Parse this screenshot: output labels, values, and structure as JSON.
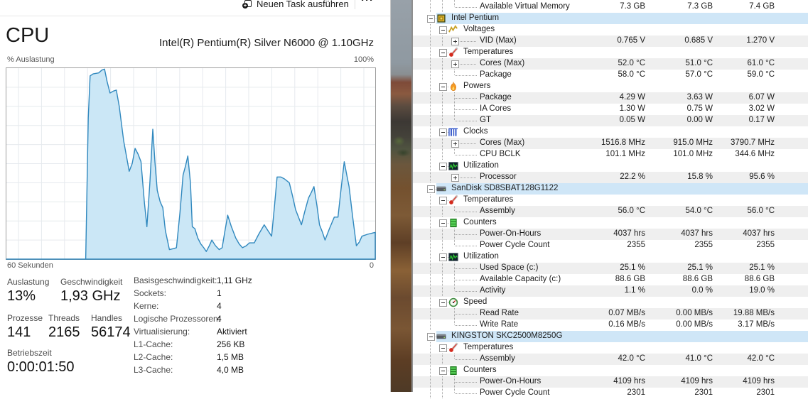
{
  "colors": {
    "graph_fill": "#cbe7f6",
    "graph_stroke": "#3088be",
    "grid": "#e6eaee",
    "header_row": "#cfe6f7",
    "shaded_row": "#efefef",
    "wall_border": "#8f8f8f"
  },
  "taskmanager": {
    "toolbar": {
      "run_new_task": "Neuen Task ausführen",
      "more": "···"
    },
    "title": "CPU",
    "subtitle": "Intel(R) Pentium(R) Silver N6000 @ 1.10GHz",
    "graph_labels": {
      "top_left": "% Auslastung",
      "top_right": "100%",
      "bottom_left": "60 Sekunden",
      "bottom_right": "0"
    },
    "stats": [
      {
        "label": "Auslastung",
        "value": "13%"
      },
      {
        "label": "Geschwindigkeit",
        "value": "1,93 GHz"
      },
      {
        "label": "Prozesse",
        "value": "141"
      },
      {
        "label": "Threads",
        "value": "2165"
      },
      {
        "label": "Handles",
        "value": "56174"
      },
      {
        "label": "Betriebszeit",
        "value": "0:00:01:50"
      }
    ],
    "details": [
      {
        "label": "Basisgeschwindigkeit:",
        "value": "1,11 GHz"
      },
      {
        "label": "Sockets:",
        "value": "1"
      },
      {
        "label": "Kerne:",
        "value": "4"
      },
      {
        "label": "Logische Prozessoren:",
        "value": "4"
      },
      {
        "label": "Virtualisierung:",
        "value": "Aktiviert"
      },
      {
        "label": "L1-Cache:",
        "value": "256 KB"
      },
      {
        "label": "L2-Cache:",
        "value": "1,5 MB"
      },
      {
        "label": "L3-Cache:",
        "value": "4,0 MB"
      }
    ]
  },
  "chart_data": {
    "type": "area",
    "title": "CPU % Auslastung",
    "xlabel": "60 Sekunden (links) bis 0 (rechts)",
    "ylabel": "% Auslastung",
    "ylim": [
      0,
      100
    ],
    "xlim_seconds": [
      60,
      0
    ],
    "grid": true,
    "points": [
      [
        0,
        0
      ],
      [
        0.215,
        0
      ],
      [
        0.222,
        74
      ],
      [
        0.227,
        96
      ],
      [
        0.235,
        97
      ],
      [
        0.25,
        97.5
      ],
      [
        0.259,
        99
      ],
      [
        0.266,
        99.5
      ],
      [
        0.273,
        93
      ],
      [
        0.281,
        87
      ],
      [
        0.29,
        88
      ],
      [
        0.298,
        88.5
      ],
      [
        0.306,
        80
      ],
      [
        0.318,
        62
      ],
      [
        0.333,
        46
      ],
      [
        0.341,
        50
      ],
      [
        0.349,
        58
      ],
      [
        0.357,
        55
      ],
      [
        0.365,
        51
      ],
      [
        0.374,
        30
      ],
      [
        0.381,
        17
      ],
      [
        0.389,
        40
      ],
      [
        0.397,
        68
      ],
      [
        0.403,
        50
      ],
      [
        0.409,
        36
      ],
      [
        0.417,
        30
      ],
      [
        0.424,
        27
      ],
      [
        0.431,
        15
      ],
      [
        0.442,
        5
      ],
      [
        0.453,
        5.5
      ],
      [
        0.461,
        6
      ],
      [
        0.471,
        25
      ],
      [
        0.479,
        44
      ],
      [
        0.486,
        49
      ],
      [
        0.492,
        54
      ],
      [
        0.499,
        40
      ],
      [
        0.504,
        17
      ],
      [
        0.511,
        16
      ],
      [
        0.519,
        11
      ],
      [
        0.527,
        8
      ],
      [
        0.535,
        6
      ],
      [
        0.542,
        4
      ],
      [
        0.55,
        7
      ],
      [
        0.557,
        10
      ],
      [
        0.567,
        7
      ],
      [
        0.577,
        5
      ],
      [
        0.585,
        6
      ],
      [
        0.592,
        14
      ],
      [
        0.6,
        23
      ],
      [
        0.61,
        17
      ],
      [
        0.622,
        11
      ],
      [
        0.631,
        8
      ],
      [
        0.64,
        6
      ],
      [
        0.65,
        7
      ],
      [
        0.659,
        8.5
      ],
      [
        0.672,
        8.5
      ],
      [
        0.684,
        13
      ],
      [
        0.699,
        18
      ],
      [
        0.709,
        15
      ],
      [
        0.719,
        12
      ],
      [
        0.727,
        28
      ],
      [
        0.734,
        43
      ],
      [
        0.744,
        43
      ],
      [
        0.754,
        42
      ],
      [
        0.767,
        40
      ],
      [
        0.776,
        33
      ],
      [
        0.784,
        26
      ],
      [
        0.792,
        22
      ],
      [
        0.8,
        18
      ],
      [
        0.809,
        25
      ],
      [
        0.819,
        32
      ],
      [
        0.827,
        35
      ],
      [
        0.834,
        38
      ],
      [
        0.842,
        28
      ],
      [
        0.849,
        18
      ],
      [
        0.857,
        14
      ],
      [
        0.864,
        10
      ],
      [
        0.876,
        16
      ],
      [
        0.889,
        22
      ],
      [
        0.899,
        22
      ],
      [
        0.907,
        36
      ],
      [
        0.916,
        51
      ],
      [
        0.923,
        44
      ],
      [
        0.929,
        38
      ],
      [
        0.939,
        22
      ],
      [
        0.949,
        7
      ],
      [
        0.957,
        9
      ],
      [
        0.964,
        12
      ],
      [
        0.979,
        13
      ],
      [
        1,
        14
      ]
    ]
  },
  "sensors": {
    "rows": [
      {
        "l": "Available Virtual Memory",
        "v": [
          "7.3 GB",
          "7.3 GB",
          "7.4 GB"
        ],
        "t": "leaf",
        "bg": "w",
        "g": [
          24,
          41
        ],
        "e": "h"
      },
      {
        "l": "Intel Pentium",
        "t": "dev",
        "icon": "cpu",
        "box": "-",
        "bg": "hdr"
      },
      {
        "l": "Voltages",
        "t": "cat",
        "icon": "volt",
        "box": "-",
        "bg": "w",
        "g": [
          24
        ]
      },
      {
        "l": "VID (Max)",
        "v": [
          "0.765 V",
          "0.685 V",
          "1.270 V"
        ],
        "t": "itemx",
        "box": "+",
        "bg": "s",
        "g": [
          24,
          41
        ]
      },
      {
        "l": "Temperatures",
        "t": "cat",
        "icon": "temp",
        "box": "-",
        "bg": "w",
        "g": [
          24
        ]
      },
      {
        "l": "Cores (Max)",
        "v": [
          "52.0 °C",
          "51.0 °C",
          "61.0 °C"
        ],
        "t": "itemx",
        "box": "+",
        "bg": "s",
        "g": [
          24,
          41
        ]
      },
      {
        "l": "Package",
        "v": [
          "58.0 °C",
          "57.0 °C",
          "59.0 °C"
        ],
        "t": "leaf",
        "bg": "w",
        "g": [
          24,
          41
        ],
        "e": "h"
      },
      {
        "l": "Powers",
        "t": "cat",
        "icon": "power",
        "box": "-",
        "bg": "w",
        "g": [
          24
        ]
      },
      {
        "l": "Package",
        "v": [
          "4.29 W",
          "3.63 W",
          "6.07 W"
        ],
        "t": "leaf",
        "bg": "s",
        "g": [
          24,
          41
        ],
        "e": "f"
      },
      {
        "l": "IA Cores",
        "v": [
          "1.30 W",
          "0.75 W",
          "3.02 W"
        ],
        "t": "leaf",
        "bg": "w",
        "g": [
          24,
          41
        ],
        "e": "f"
      },
      {
        "l": "GT",
        "v": [
          "0.05 W",
          "0.00 W",
          "0.17 W"
        ],
        "t": "leaf",
        "bg": "s",
        "g": [
          24,
          41
        ],
        "e": "h"
      },
      {
        "l": "Clocks",
        "t": "cat",
        "icon": "clock",
        "box": "-",
        "bg": "w",
        "g": [
          24
        ]
      },
      {
        "l": "Cores (Max)",
        "v": [
          "1516.8 MHz",
          "915.0 MHz",
          "3790.7 MHz"
        ],
        "t": "itemx",
        "box": "+",
        "bg": "s",
        "g": [
          24,
          41
        ]
      },
      {
        "l": "CPU BCLK",
        "v": [
          "101.1 MHz",
          "101.0 MHz",
          "344.6 MHz"
        ],
        "t": "leaf",
        "bg": "w",
        "g": [
          24,
          41
        ],
        "e": "h"
      },
      {
        "l": "Utilization",
        "t": "cat",
        "icon": "util",
        "box": "-",
        "bg": "w",
        "g": [
          24
        ]
      },
      {
        "l": "Processor",
        "v": [
          "22.2 %",
          "15.8 %",
          "95.6 %"
        ],
        "t": "itemx",
        "box": "+",
        "bg": "s",
        "g": [
          24
        ]
      },
      {
        "l": "SanDisk SD8SBAT128G1122",
        "t": "dev",
        "icon": "disk",
        "box": "-",
        "bg": "hdr"
      },
      {
        "l": "Temperatures",
        "t": "cat",
        "icon": "temp",
        "box": "-",
        "bg": "w",
        "g": [
          24
        ]
      },
      {
        "l": "Assembly",
        "v": [
          "56.0 °C",
          "54.0 °C",
          "56.0 °C"
        ],
        "t": "leaf",
        "bg": "s",
        "g": [
          24,
          41
        ],
        "e": "h"
      },
      {
        "l": "Counters",
        "t": "cat",
        "icon": "counter",
        "box": "-",
        "bg": "w",
        "g": [
          24
        ]
      },
      {
        "l": "Power-On-Hours",
        "v": [
          "4037 hrs",
          "4037 hrs",
          "4037 hrs"
        ],
        "t": "leaf",
        "bg": "s",
        "g": [
          24,
          41
        ],
        "e": "f"
      },
      {
        "l": "Power Cycle Count",
        "v": [
          "2355",
          "2355",
          "2355"
        ],
        "t": "leaf",
        "bg": "w",
        "g": [
          24,
          41
        ],
        "e": "h"
      },
      {
        "l": "Utilization",
        "t": "cat",
        "icon": "util",
        "box": "-",
        "bg": "w",
        "g": [
          24
        ]
      },
      {
        "l": "Used Space (c:)",
        "v": [
          "25.1 %",
          "25.1 %",
          "25.1 %"
        ],
        "t": "leaf",
        "bg": "s",
        "g": [
          24,
          41
        ],
        "e": "f"
      },
      {
        "l": "Available Capacity (c:)",
        "v": [
          "88.6 GB",
          "88.6 GB",
          "88.6 GB"
        ],
        "t": "leaf",
        "bg": "w",
        "g": [
          24,
          41
        ],
        "e": "f"
      },
      {
        "l": "Activity",
        "v": [
          "1.1 %",
          "0.0 %",
          "19.0 %"
        ],
        "t": "leaf",
        "bg": "s",
        "g": [
          24,
          41
        ],
        "e": "h"
      },
      {
        "l": "Speed",
        "t": "cat",
        "icon": "speed",
        "box": "-",
        "bg": "w",
        "g": [
          24
        ]
      },
      {
        "l": "Read Rate",
        "v": [
          "0.07 MB/s",
          "0.00 MB/s",
          "19.88 MB/s"
        ],
        "t": "leaf",
        "bg": "s",
        "g": [
          24
        ],
        "e": "f"
      },
      {
        "l": "Write Rate",
        "v": [
          "0.16 MB/s",
          "0.00 MB/s",
          "3.17 MB/s"
        ],
        "t": "leaf",
        "bg": "w",
        "g": [
          24
        ],
        "e": "h"
      },
      {
        "l": "KINGSTON SKC2500M8250G",
        "t": "dev",
        "icon": "disk",
        "box": "-",
        "bg": "hdr"
      },
      {
        "l": "Temperatures",
        "t": "cat",
        "icon": "temp",
        "box": "-",
        "bg": "w",
        "g": [
          24
        ]
      },
      {
        "l": "Assembly",
        "v": [
          "42.0 °C",
          "41.0 °C",
          "42.0 °C"
        ],
        "t": "leaf",
        "bg": "s",
        "g": [
          24,
          41
        ],
        "e": "h"
      },
      {
        "l": "Counters",
        "t": "cat",
        "icon": "counter",
        "box": "-",
        "bg": "w",
        "g": [
          24
        ]
      },
      {
        "l": "Power-On-Hours",
        "v": [
          "4109 hrs",
          "4109 hrs",
          "4109 hrs"
        ],
        "t": "leaf",
        "bg": "s",
        "g": [
          24,
          41
        ],
        "e": "f"
      },
      {
        "l": "Power Cycle Count",
        "v": [
          "2301",
          "2301",
          "2301"
        ],
        "t": "leaf",
        "bg": "w",
        "g": [
          24,
          41
        ],
        "e": "h"
      }
    ]
  }
}
